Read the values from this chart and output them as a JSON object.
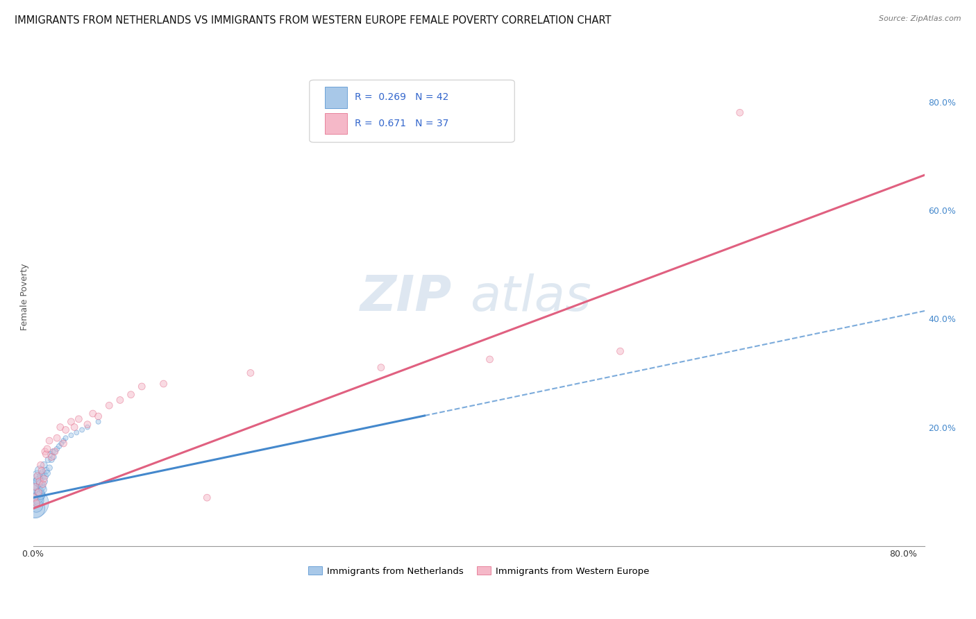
{
  "title": "IMMIGRANTS FROM NETHERLANDS VS IMMIGRANTS FROM WESTERN EUROPE FEMALE POVERTY CORRELATION CHART",
  "source": "Source: ZipAtlas.com",
  "ylabel": "Female Poverty",
  "xlim": [
    0.0,
    0.82
  ],
  "ylim": [
    -0.02,
    0.9
  ],
  "watermark_zip": "ZIP",
  "watermark_atlas": "atlas",
  "legend_R1": "0.269",
  "legend_N1": "42",
  "legend_R2": "0.671",
  "legend_N2": "37",
  "color_blue": "#a8c8e8",
  "color_pink": "#f5b8c8",
  "color_blue_line": "#4488cc",
  "color_pink_line": "#e06080",
  "color_blue_dark": "#3366aa",
  "scatter_alpha": 0.5,
  "blue_x": [
    0.001,
    0.001,
    0.001,
    0.002,
    0.002,
    0.002,
    0.003,
    0.003,
    0.004,
    0.004,
    0.005,
    0.005,
    0.006,
    0.006,
    0.007,
    0.007,
    0.008,
    0.008,
    0.009,
    0.009,
    0.01,
    0.01,
    0.011,
    0.012,
    0.013,
    0.014,
    0.015,
    0.016,
    0.017,
    0.018,
    0.019,
    0.02,
    0.022,
    0.024,
    0.026,
    0.028,
    0.03,
    0.035,
    0.04,
    0.045,
    0.05,
    0.06
  ],
  "blue_y": [
    0.06,
    0.075,
    0.09,
    0.05,
    0.08,
    0.1,
    0.055,
    0.095,
    0.07,
    0.11,
    0.065,
    0.1,
    0.08,
    0.12,
    0.075,
    0.095,
    0.11,
    0.09,
    0.085,
    0.115,
    0.1,
    0.13,
    0.11,
    0.12,
    0.115,
    0.14,
    0.125,
    0.15,
    0.14,
    0.155,
    0.145,
    0.155,
    0.16,
    0.165,
    0.17,
    0.175,
    0.18,
    0.185,
    0.19,
    0.195,
    0.2,
    0.21
  ],
  "blue_sizes": [
    900,
    450,
    300,
    400,
    250,
    200,
    180,
    150,
    140,
    130,
    120,
    110,
    100,
    90,
    85,
    80,
    75,
    70,
    65,
    60,
    55,
    50,
    48,
    45,
    42,
    40,
    38,
    36,
    34,
    32,
    30,
    30,
    28,
    28,
    26,
    26,
    25,
    25,
    25,
    25,
    25,
    25
  ],
  "pink_x": [
    0.001,
    0.002,
    0.003,
    0.004,
    0.005,
    0.006,
    0.007,
    0.008,
    0.009,
    0.01,
    0.011,
    0.012,
    0.013,
    0.015,
    0.017,
    0.02,
    0.022,
    0.025,
    0.028,
    0.03,
    0.035,
    0.038,
    0.042,
    0.05,
    0.055,
    0.06,
    0.07,
    0.08,
    0.09,
    0.1,
    0.12,
    0.16,
    0.2,
    0.32,
    0.42,
    0.54,
    0.65
  ],
  "pink_y": [
    0.07,
    0.09,
    0.06,
    0.11,
    0.08,
    0.1,
    0.13,
    0.12,
    0.095,
    0.105,
    0.155,
    0.15,
    0.16,
    0.175,
    0.145,
    0.155,
    0.18,
    0.2,
    0.17,
    0.195,
    0.21,
    0.2,
    0.215,
    0.205,
    0.225,
    0.22,
    0.24,
    0.25,
    0.26,
    0.275,
    0.28,
    0.07,
    0.3,
    0.31,
    0.325,
    0.34,
    0.78
  ],
  "pink_sizes": [
    60,
    50,
    50,
    50,
    50,
    50,
    50,
    50,
    50,
    50,
    50,
    50,
    50,
    50,
    50,
    50,
    50,
    50,
    50,
    50,
    50,
    50,
    50,
    50,
    50,
    50,
    50,
    50,
    50,
    50,
    50,
    50,
    50,
    50,
    50,
    50,
    50
  ],
  "grid_color": "#cccccc",
  "background_color": "#ffffff",
  "title_fontsize": 10.5,
  "axis_label_fontsize": 9,
  "tick_fontsize": 9,
  "blue_line_end_x": 0.36,
  "pink_line_slope": 0.75,
  "pink_line_intercept": 0.05,
  "blue_line_slope": 0.42,
  "blue_line_intercept": 0.07
}
